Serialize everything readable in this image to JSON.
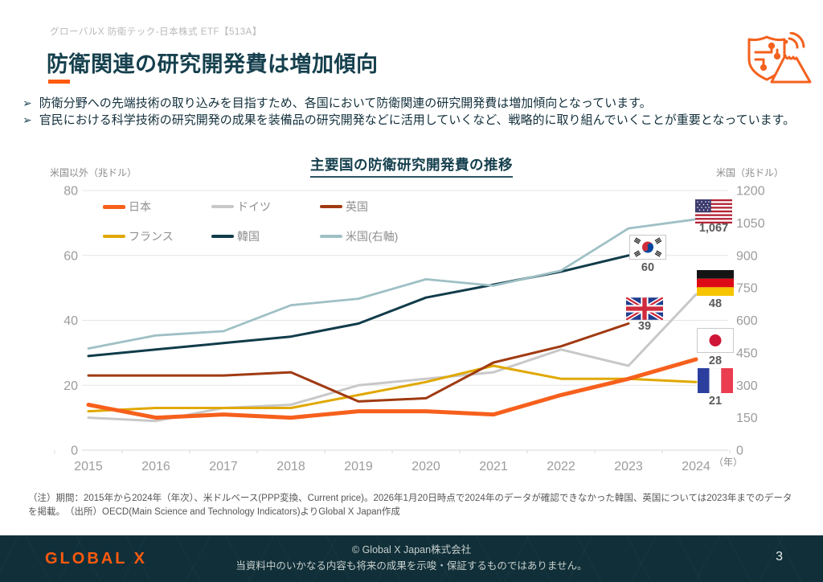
{
  "page": {
    "eyebrow": "グローバルX 防衛テック-日本株式 ETF【513A】",
    "title": "防衛関連の研究開発費は増加傾向",
    "bullets": [
      "防衛分野への先端技術の取り込みを目指すため、各国において防衛関連の研究開発費は増加傾向となっています。",
      "官民における科学技術の研究開発の成果を装備品の研究開発などに活用していくなど、戦略的に取り組んでいくことが重要となっています。"
    ],
    "note": "（注）期間：2015年から2024年（年次）、米ドルベース(PPP変換、Current price)。2026年1月20日時点で2024年のデータが確認できなかった韓国、英国については2023年までのデータを掲載。　（出所）OECD(Main Science and Technology Indicators)よりGlobal X Japan作成",
    "page_number": "3"
  },
  "icons": {
    "header_icon": "shield-circuit-mount-fuji-icon"
  },
  "footer": {
    "logo": "GLOBAL X",
    "copyright": "© Global X Japan株式会社",
    "disclaimer": "当資料中のいかなる内容も将来の成果を示唆・保証するものではありません。"
  },
  "chart_data": {
    "type": "line",
    "title": "主要国の防衛研究開発費の推移",
    "x": [
      2015,
      2016,
      2017,
      2018,
      2019,
      2020,
      2021,
      2022,
      2023,
      2024
    ],
    "x_suffix": "（年）",
    "left_axis": {
      "label": "米国以外（兆ドル）",
      "range": [
        0,
        80
      ],
      "ticks": [
        0,
        20,
        40,
        60,
        80
      ]
    },
    "right_axis": {
      "label": "米国（兆ドル）",
      "range": [
        0,
        1200
      ],
      "ticks": [
        0,
        150,
        300,
        450,
        600,
        750,
        900,
        1050,
        1200
      ]
    },
    "grid": "horizontal",
    "legend_position": "top-left-inside",
    "series": [
      {
        "name": "日本",
        "flag": "jp",
        "axis": "left",
        "color": "#f6601c",
        "width": 5,
        "values": [
          14,
          10,
          11,
          10,
          12,
          12,
          11,
          17,
          22,
          28
        ],
        "end_label": "28"
      },
      {
        "name": "ドイツ",
        "flag": "de",
        "axis": "left",
        "color": "#c8c8c8",
        "width": 3,
        "values": [
          10,
          9,
          13,
          14,
          20,
          22,
          24,
          31,
          26,
          48
        ],
        "end_label": "48"
      },
      {
        "name": "英国",
        "flag": "gb",
        "axis": "left",
        "color": "#a03a12",
        "width": 3,
        "values": [
          23,
          23,
          23,
          24,
          15,
          16,
          27,
          32,
          39,
          null
        ],
        "end_label": "39"
      },
      {
        "name": "フランス",
        "flag": "fr",
        "axis": "left",
        "color": "#e0a800",
        "width": 3,
        "values": [
          12,
          13,
          13,
          13,
          17,
          21,
          26,
          22,
          22,
          21
        ],
        "end_label": "21"
      },
      {
        "name": "韓国",
        "flag": "kr",
        "axis": "left",
        "color": "#113c4a",
        "width": 3,
        "values": [
          29,
          31,
          33,
          35,
          39,
          47,
          51,
          55,
          60,
          null
        ],
        "end_label": "60"
      },
      {
        "name": "米国(右軸)",
        "flag": "us",
        "axis": "right",
        "color": "#9fc0c5",
        "width": 2.8,
        "values": [
          470,
          530,
          550,
          670,
          700,
          790,
          760,
          830,
          1025,
          1067
        ],
        "end_label": "1,067"
      }
    ]
  }
}
